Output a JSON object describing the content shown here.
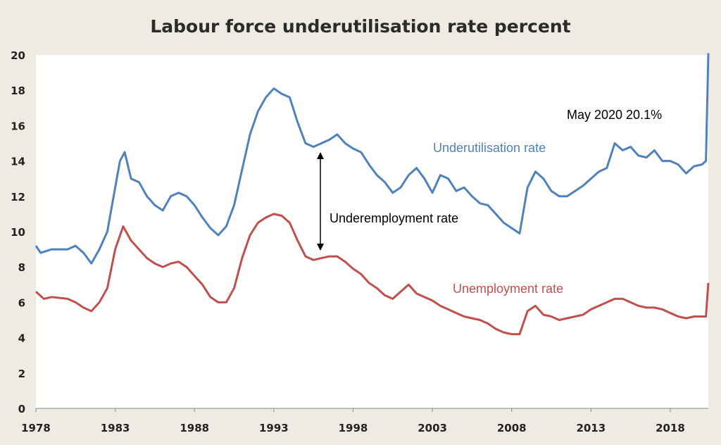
{
  "chart_data": {
    "type": "line",
    "title": "Labour force underutilisation rate percent",
    "xlabel": "",
    "ylabel": "",
    "xlim": [
      1978,
      2020.4
    ],
    "ylim": [
      0,
      20
    ],
    "x_ticks": [
      "1978",
      "1983",
      "1988",
      "1993",
      "1998",
      "2003",
      "2008",
      "2013",
      "2018"
    ],
    "y_ticks": [
      "0",
      "2",
      "4",
      "6",
      "8",
      "10",
      "12",
      "14",
      "16",
      "18",
      "20"
    ],
    "grid": false,
    "colors": {
      "underutilisation": "#4f81bd",
      "unemployment": "#c0504d",
      "background": "#edebe2"
    },
    "annotations": {
      "peak_label": "May 2020 20.1%",
      "underutilisation_label": "Underutilisation rate",
      "underemployment_label": "Underemployment rate",
      "unemployment_label": "Unemployment rate"
    },
    "series": [
      {
        "name": "Underutilisation rate",
        "x": [
          1978,
          1978.3,
          1979,
          1980,
          1980.5,
          1981,
          1981.5,
          1982,
          1982.5,
          1983,
          1983.3,
          1983.6,
          1984,
          1984.5,
          1985,
          1985.5,
          1986,
          1986.5,
          1987,
          1987.5,
          1988,
          1988.5,
          1989,
          1989.5,
          1990,
          1990.5,
          1991,
          1991.5,
          1992,
          1992.5,
          1993,
          1993.5,
          1994,
          1994.5,
          1995,
          1995.5,
          1996,
          1996.5,
          1997,
          1997.5,
          1998,
          1998.5,
          1999,
          1999.5,
          2000,
          2000.5,
          2001,
          2001.5,
          2002,
          2002.5,
          2003,
          2003.5,
          2004,
          2004.5,
          2005,
          2005.5,
          2006,
          2006.5,
          2007,
          2007.5,
          2008,
          2008.5,
          2009,
          2009.5,
          2010,
          2010.5,
          2011,
          2011.5,
          2012,
          2012.5,
          2013,
          2013.5,
          2014,
          2014.5,
          2015,
          2015.5,
          2016,
          2016.5,
          2017,
          2017.5,
          2018,
          2018.5,
          2019,
          2019.5,
          2020,
          2020.25,
          2020.4
        ],
        "values": [
          9.2,
          8.8,
          9.0,
          9.0,
          9.2,
          8.8,
          8.2,
          9.0,
          10.0,
          12.5,
          14.0,
          14.5,
          13.0,
          12.8,
          12.0,
          11.5,
          11.2,
          12.0,
          12.2,
          12.0,
          11.5,
          10.8,
          10.2,
          9.8,
          10.3,
          11.5,
          13.5,
          15.5,
          16.8,
          17.6,
          18.1,
          17.8,
          17.6,
          16.2,
          15.0,
          14.8,
          15.0,
          15.2,
          15.5,
          15.0,
          14.7,
          14.5,
          13.8,
          13.2,
          12.8,
          12.2,
          12.5,
          13.2,
          13.6,
          13.0,
          12.2,
          13.2,
          13.0,
          12.3,
          12.5,
          12.0,
          11.6,
          11.5,
          11.0,
          10.5,
          10.2,
          9.9,
          12.5,
          13.4,
          13.0,
          12.3,
          12.0,
          12.0,
          12.3,
          12.6,
          13.0,
          13.4,
          13.6,
          15.0,
          14.6,
          14.8,
          14.3,
          14.2,
          14.6,
          14.0,
          14.0,
          13.8,
          13.3,
          13.7,
          13.8,
          14.0,
          20.1
        ]
      },
      {
        "name": "Unemployment rate",
        "x": [
          1978,
          1978.5,
          1979,
          1980,
          1980.5,
          1981,
          1981.5,
          1982,
          1982.5,
          1983,
          1983.5,
          1984,
          1984.5,
          1985,
          1985.5,
          1986,
          1986.5,
          1987,
          1987.5,
          1988,
          1988.5,
          1989,
          1989.5,
          1990,
          1990.5,
          1991,
          1991.5,
          1992,
          1992.5,
          1993,
          1993.5,
          1994,
          1994.5,
          1995,
          1995.5,
          1996,
          1996.5,
          1997,
          1997.5,
          1998,
          1998.5,
          1999,
          1999.5,
          2000,
          2000.5,
          2001,
          2001.5,
          2002,
          2002.5,
          2003,
          2003.5,
          2004,
          2004.5,
          2005,
          2005.5,
          2006,
          2006.5,
          2007,
          2007.5,
          2008,
          2008.5,
          2009,
          2009.5,
          2010,
          2010.5,
          2011,
          2011.5,
          2012,
          2012.5,
          2013,
          2013.5,
          2014,
          2014.5,
          2015,
          2015.5,
          2016,
          2016.5,
          2017,
          2017.5,
          2018,
          2018.5,
          2019,
          2019.5,
          2020,
          2020.25,
          2020.4
        ],
        "values": [
          6.6,
          6.2,
          6.3,
          6.2,
          6.0,
          5.7,
          5.5,
          6.0,
          6.8,
          9.0,
          10.3,
          9.5,
          9.0,
          8.5,
          8.2,
          8.0,
          8.2,
          8.3,
          8.0,
          7.5,
          7.0,
          6.3,
          6.0,
          6.0,
          6.8,
          8.5,
          9.8,
          10.5,
          10.8,
          11.0,
          10.9,
          10.5,
          9.5,
          8.6,
          8.4,
          8.5,
          8.6,
          8.6,
          8.3,
          7.9,
          7.6,
          7.1,
          6.8,
          6.4,
          6.2,
          6.6,
          7.0,
          6.5,
          6.3,
          6.1,
          5.8,
          5.6,
          5.4,
          5.2,
          5.1,
          5.0,
          4.8,
          4.5,
          4.3,
          4.2,
          4.2,
          5.5,
          5.8,
          5.3,
          5.2,
          5.0,
          5.1,
          5.2,
          5.3,
          5.6,
          5.8,
          6.0,
          6.2,
          6.2,
          6.0,
          5.8,
          5.7,
          5.7,
          5.6,
          5.4,
          5.2,
          5.1,
          5.2,
          5.2,
          5.2,
          7.1
        ]
      }
    ]
  }
}
